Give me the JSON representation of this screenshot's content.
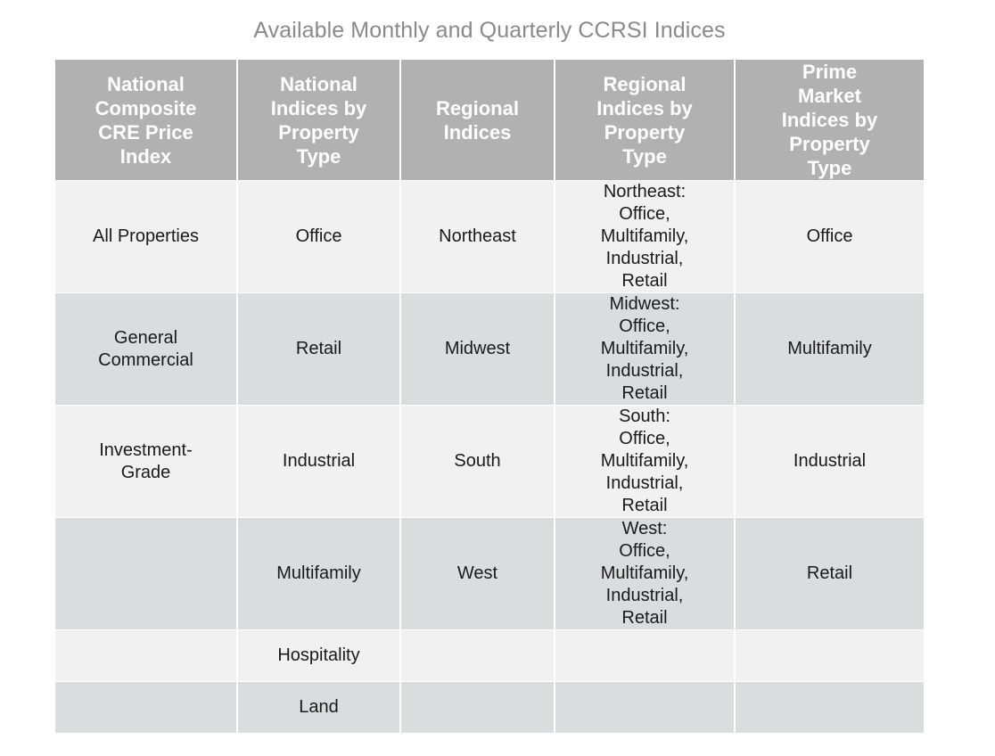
{
  "title": "Available Monthly and Quarterly CCRSI Indices",
  "table": {
    "headers": [
      [
        "National",
        "Composite",
        "CRE Price",
        "Index"
      ],
      [
        "National",
        "Indices by",
        "Property",
        "Type"
      ],
      [
        "Regional",
        "Indices"
      ],
      [
        "Regional",
        "Indices by",
        "Property",
        "Type"
      ],
      [
        "Prime",
        "Market",
        "Indices by",
        "Property",
        "Type"
      ]
    ],
    "rows": [
      [
        [
          "All Properties"
        ],
        [
          "Office"
        ],
        [
          "Northeast"
        ],
        [
          "Northeast:",
          "Office,",
          "Multifamily,",
          "Industrial,",
          "Retail"
        ],
        [
          "Office"
        ]
      ],
      [
        [
          "General",
          "Commercial"
        ],
        [
          "Retail"
        ],
        [
          "Midwest"
        ],
        [
          "Midwest:",
          "Office,",
          "Multifamily,",
          "Industrial,",
          "Retail"
        ],
        [
          "Multifamily"
        ]
      ],
      [
        [
          "Investment-",
          "Grade"
        ],
        [
          "Industrial"
        ],
        [
          "South"
        ],
        [
          "South:",
          "Office,",
          "Multifamily,",
          "Industrial,",
          "Retail"
        ],
        [
          "Industrial"
        ]
      ],
      [
        [],
        [
          "Multifamily"
        ],
        [
          "West"
        ],
        [
          "West:",
          "Office,",
          "Multifamily,",
          "Industrial,",
          "Retail"
        ],
        [
          "Retail"
        ]
      ],
      [
        [],
        [
          "Hospitality"
        ],
        [],
        [],
        []
      ],
      [
        [],
        [
          "Land"
        ],
        [],
        [],
        []
      ]
    ]
  }
}
